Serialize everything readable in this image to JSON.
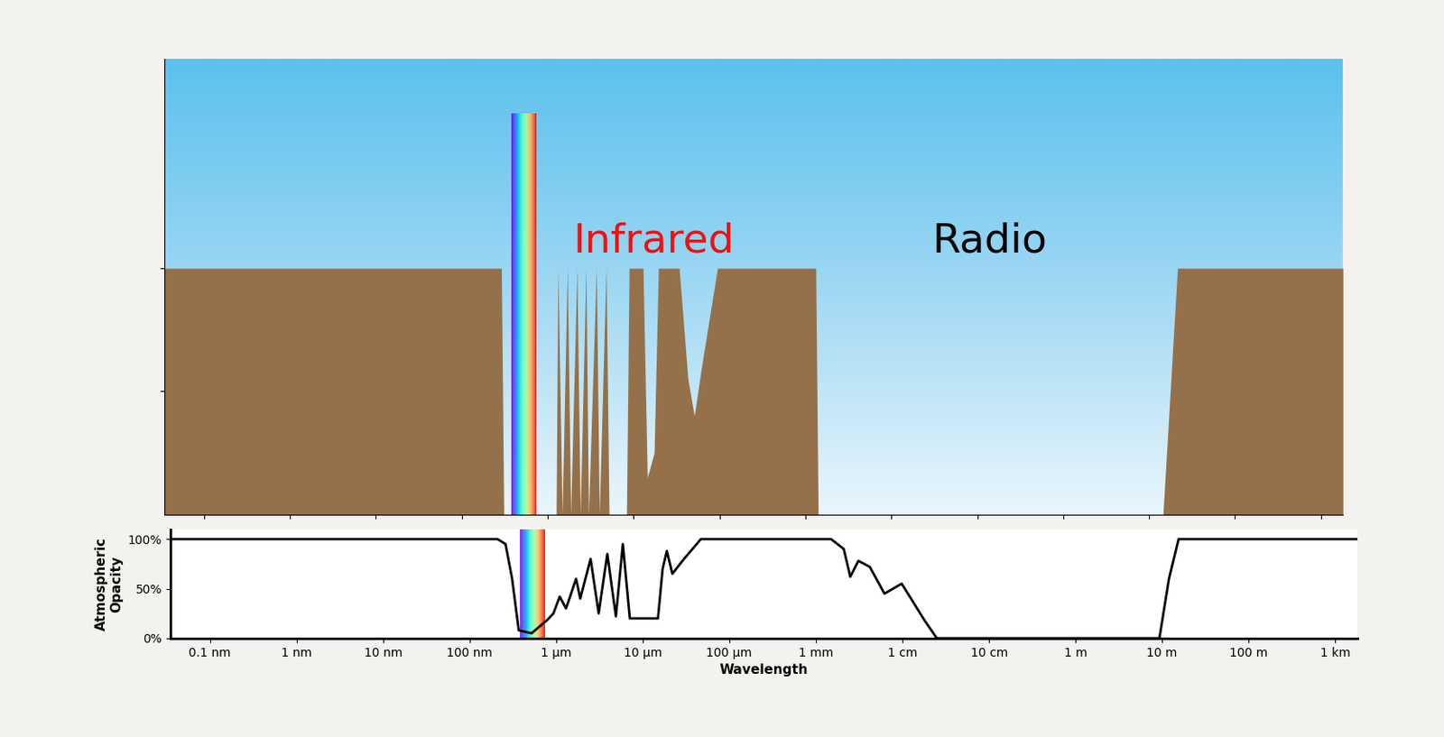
{
  "chart_data": [
    {
      "type": "area",
      "color": "#94714a",
      "annotations": [
        {
          "text": "Infrared",
          "color": "#ee1111"
        },
        {
          "text": "Radio",
          "color": "#000000"
        }
      ],
      "x": [
        3.2e-11,
        2.9e-07,
        3.1e-07,
        1.26e-06,
        1.32e-06,
        1.48e-06,
        1.7e-06,
        1.86e-06,
        2.2e-06,
        2.4e-06,
        2.8e-06,
        3e-06,
        3.7e-06,
        4e-06,
        4.8e-06,
        5.2e-06,
        8.3e-06,
        8.9e-06,
        1.29e-05,
        1.45e-05,
        1.74e-05,
        1.95e-05,
        3.4e-05,
        4.3e-05,
        5.1e-05,
        6.2e-05,
        9.5e-05,
        0.00132,
        0.00141,
        14.5,
        21.4,
        1800
      ],
      "values": [
        100,
        100,
        0,
        0,
        100,
        0,
        100,
        0,
        100,
        0,
        100,
        0,
        100,
        0,
        100,
        0,
        0,
        100,
        100,
        15,
        25,
        100,
        100,
        55,
        40,
        60,
        100,
        100,
        0,
        0,
        100,
        100
      ],
      "visible_range": [
        3.8e-07,
        7.5e-07
      ],
      "log": "x",
      "xlim": [
        3.5e-11,
        1800
      ],
      "ylim": [
        0,
        185
      ],
      "xticks": [
        1e-10,
        1e-09,
        1e-08,
        1e-07,
        1e-06,
        1e-05,
        0.0001,
        0.001,
        0.01,
        0.1,
        1,
        10,
        100,
        1000
      ],
      "yticks": [
        50,
        100
      ],
      "tick_labels": false
    },
    {
      "type": "line",
      "color": "#000000",
      "xlabel": "Wavelength",
      "ylabel": "Atmospheric\nOpacity",
      "x": [
        3.5e-11,
        2.1e-07,
        2.6e-07,
        3.1e-07,
        3.7e-07,
        5.2e-07,
        7.8e-07,
        9.3e-07,
        1.1e-06,
        1.3e-06,
        1.7e-06,
        1.9e-06,
        2.5e-06,
        3.1e-06,
        3.9e-06,
        4.9e-06,
        5.9e-06,
        7.1e-06,
        1.5e-05,
        1.7e-05,
        1.9e-05,
        2.2e-05,
        3e-05,
        4.7e-05,
        0.0015,
        0.0021,
        0.0025,
        0.0031,
        0.0042,
        0.0062,
        0.0078,
        0.0098,
        0.013,
        0.018,
        0.025,
        9.3,
        12,
        15.5,
        1800
      ],
      "values": [
        100,
        100,
        95,
        60,
        8,
        5,
        18,
        25,
        42,
        30,
        60,
        40,
        80,
        25,
        85,
        22,
        95,
        20,
        20,
        70,
        88,
        65,
        80,
        100,
        100,
        90,
        62,
        78,
        72,
        45,
        50,
        55,
        38,
        18,
        0,
        0,
        60,
        100,
        100
      ],
      "visible_range": [
        3.8e-07,
        7.5e-07
      ],
      "log": "x",
      "xlim": [
        3.5e-11,
        1800
      ],
      "ylim": [
        0,
        110
      ],
      "xticks": [
        {
          "value": 1e-10,
          "label": "0.1 nm"
        },
        {
          "value": 1e-09,
          "label": "1 nm"
        },
        {
          "value": 1e-08,
          "label": "10 nm"
        },
        {
          "value": 1e-07,
          "label": "100 nm"
        },
        {
          "value": 1e-06,
          "label": "1 µm"
        },
        {
          "value": 1e-05,
          "label": "10 µm"
        },
        {
          "value": 0.0001,
          "label": "100 µm"
        },
        {
          "value": 0.001,
          "label": "1 mm"
        },
        {
          "value": 0.01,
          "label": "1 cm"
        },
        {
          "value": 0.1,
          "label": "10 cm"
        },
        {
          "value": 1,
          "label": "1 m"
        },
        {
          "value": 10,
          "label": "10 m"
        },
        {
          "value": 100,
          "label": "100 m"
        },
        {
          "value": 1000,
          "label": "1 km"
        }
      ],
      "yticks": [
        {
          "value": 0,
          "label": "0%"
        },
        {
          "value": 50,
          "label": "50%"
        },
        {
          "value": 100,
          "label": "100%"
        }
      ]
    }
  ]
}
